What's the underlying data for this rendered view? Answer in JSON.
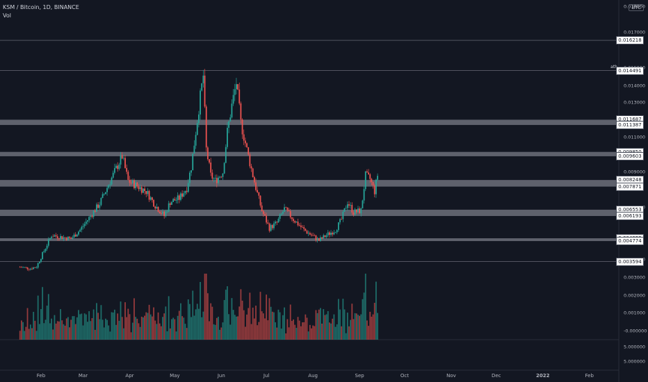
{
  "header": {
    "symbol_line": "KSM / Bitcoin, 1D, BINANCE",
    "volume_label": "Vol"
  },
  "price_scale": {
    "currency": "BTC",
    "ticks": [
      "0.018000",
      "0.017000",
      "0.015000",
      "0.014000",
      "0.013000",
      "0.011000",
      "0.009000",
      "0.007000",
      "0.004000",
      "0.003000",
      "0.002000",
      "0.001000",
      "-0.000000",
      "5.000000",
      "5.000000"
    ]
  },
  "level_tags": [
    {
      "id": "l1",
      "label": "0.016218",
      "price": 0.016218
    },
    {
      "id": "l2",
      "label": "0.014491",
      "price": 0.014491
    },
    {
      "id": "l3",
      "label": "0.011687",
      "price": 0.011687
    },
    {
      "id": "l4",
      "label": "0.011387",
      "price": 0.011387
    },
    {
      "id": "l5",
      "label": "0.009850",
      "price": 0.00985
    },
    {
      "id": "l6",
      "label": "0.009603",
      "price": 0.009603
    },
    {
      "id": "l7",
      "label": "0.008248",
      "price": 0.008248
    },
    {
      "id": "l8",
      "label": "0.007871",
      "price": 0.007871
    },
    {
      "id": "l9",
      "label": "0.006553",
      "price": 0.006553
    },
    {
      "id": "l10",
      "label": "0.006193",
      "price": 0.006193
    },
    {
      "id": "l11",
      "label": "0.004922",
      "price": 0.004922
    },
    {
      "id": "l12",
      "label": "0.004774",
      "price": 0.004774
    },
    {
      "id": "l13",
      "label": "0.003594",
      "price": 0.003594
    }
  ],
  "ath_label": "ath",
  "time_axis": [
    "Feb",
    "Mar",
    "Apr",
    "May",
    "Jun",
    "Jul",
    "Aug",
    "Sep",
    "Oct",
    "Nov",
    "Dec",
    "2022",
    "Feb"
  ],
  "colors": {
    "up": "#26a69a",
    "down": "#ef5350",
    "zone": "#787b86",
    "background": "#131722"
  },
  "chart_data": {
    "type": "candlestick",
    "title": "KSM / Bitcoin, 1D, BINANCE",
    "x_range": [
      "Jan 2021",
      "Feb 2022"
    ],
    "y_range": [
      0.0033,
      0.0182
    ],
    "support_resistance_zones": [
      {
        "top": 0.011687,
        "bottom": 0.011387
      },
      {
        "top": 0.00985,
        "bottom": 0.009603
      },
      {
        "top": 0.008248,
        "bottom": 0.007871
      },
      {
        "top": 0.006553,
        "bottom": 0.006193
      },
      {
        "top": 0.004922,
        "bottom": 0.004774
      }
    ],
    "horizontal_lines": [
      0.016218,
      0.014491,
      0.003594
    ],
    "price_path": [
      {
        "date": "2021-01-18",
        "close": 0.00328
      },
      {
        "date": "2021-01-25",
        "close": 0.0032
      },
      {
        "date": "2021-01-29",
        "close": 0.0033
      },
      {
        "date": "2021-02-03",
        "close": 0.0042
      },
      {
        "date": "2021-02-08",
        "close": 0.0051
      },
      {
        "date": "2021-02-14",
        "close": 0.005
      },
      {
        "date": "2021-02-21",
        "close": 0.0049
      },
      {
        "date": "2021-02-27",
        "close": 0.0054
      },
      {
        "date": "2021-03-06",
        "close": 0.0062
      },
      {
        "date": "2021-03-12",
        "close": 0.0069
      },
      {
        "date": "2021-03-18",
        "close": 0.008
      },
      {
        "date": "2021-03-23",
        "close": 0.0089
      },
      {
        "date": "2021-03-27",
        "close": 0.0096
      },
      {
        "date": "2021-03-31",
        "close": 0.0082
      },
      {
        "date": "2021-04-06",
        "close": 0.0079
      },
      {
        "date": "2021-04-12",
        "close": 0.0076
      },
      {
        "date": "2021-04-18",
        "close": 0.0068
      },
      {
        "date": "2021-04-24",
        "close": 0.0062
      },
      {
        "date": "2021-04-28",
        "close": 0.007
      },
      {
        "date": "2021-05-04",
        "close": 0.0072
      },
      {
        "date": "2021-05-09",
        "close": 0.0078
      },
      {
        "date": "2021-05-12",
        "close": 0.009
      },
      {
        "date": "2021-05-15",
        "close": 0.011
      },
      {
        "date": "2021-05-18",
        "close": 0.013
      },
      {
        "date": "2021-05-20",
        "close": 0.0142
      },
      {
        "date": "2021-05-22",
        "close": 0.01
      },
      {
        "date": "2021-05-25",
        "close": 0.0085
      },
      {
        "date": "2021-05-28",
        "close": 0.0082
      },
      {
        "date": "2021-06-02",
        "close": 0.0087
      },
      {
        "date": "2021-06-05",
        "close": 0.011
      },
      {
        "date": "2021-06-08",
        "close": 0.0125
      },
      {
        "date": "2021-06-11",
        "close": 0.0138
      },
      {
        "date": "2021-06-14",
        "close": 0.0115
      },
      {
        "date": "2021-06-19",
        "close": 0.0096
      },
      {
        "date": "2021-06-24",
        "close": 0.0078
      },
      {
        "date": "2021-06-28",
        "close": 0.0065
      },
      {
        "date": "2021-07-03",
        "close": 0.0055
      },
      {
        "date": "2021-07-08",
        "close": 0.0058
      },
      {
        "date": "2021-07-13",
        "close": 0.0066
      },
      {
        "date": "2021-07-19",
        "close": 0.006
      },
      {
        "date": "2021-07-26",
        "close": 0.0054
      },
      {
        "date": "2021-07-31",
        "close": 0.0051
      },
      {
        "date": "2021-08-05",
        "close": 0.0048
      },
      {
        "date": "2021-08-10",
        "close": 0.0051
      },
      {
        "date": "2021-08-16",
        "close": 0.0054
      },
      {
        "date": "2021-08-20",
        "close": 0.006
      },
      {
        "date": "2021-08-24",
        "close": 0.007
      },
      {
        "date": "2021-08-28",
        "close": 0.0064
      },
      {
        "date": "2021-09-02",
        "close": 0.0065
      },
      {
        "date": "2021-09-05",
        "close": 0.0085
      },
      {
        "date": "2021-09-08",
        "close": 0.0083
      },
      {
        "date": "2021-09-11",
        "close": 0.0076
      },
      {
        "date": "2021-09-14",
        "close": 0.009
      }
    ]
  }
}
